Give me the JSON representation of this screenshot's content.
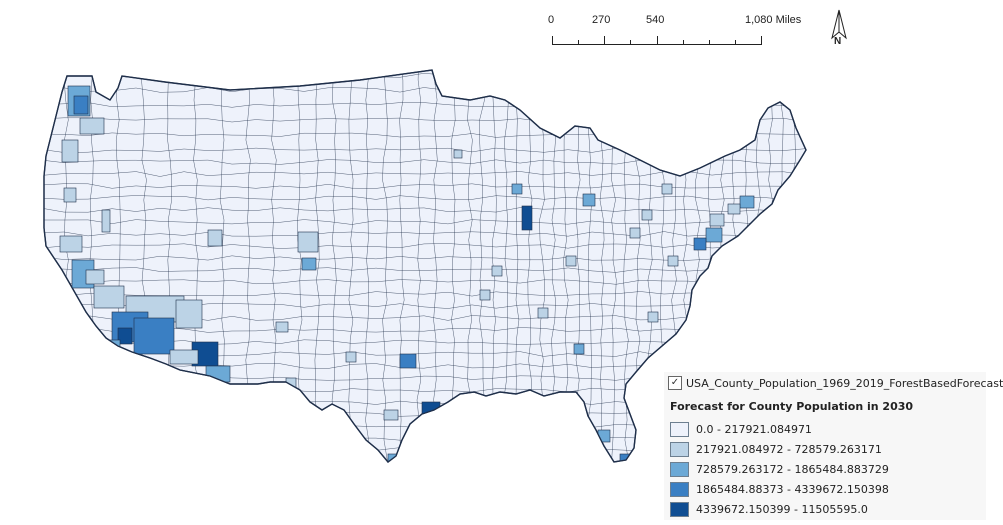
{
  "scale_bar": {
    "labels": [
      "0",
      "270",
      "540",
      "1,080 Miles"
    ]
  },
  "north_arrow": {
    "label": "N"
  },
  "legend": {
    "layer_name": "USA_County_Population_1969_2019_ForestBasedForecast",
    "layer_checked": "✓",
    "title": "Forecast for County Population in 2030",
    "classes": [
      {
        "label": "0.0 - 217921.084971",
        "color": "#eef2fb"
      },
      {
        "label": "217921.084972 - 728579.263171",
        "color": "#bcd3e6"
      },
      {
        "label": "728579.263172 - 1865484.883729",
        "color": "#6ca9d6"
      },
      {
        "label": "1865484.88373 - 4339672.150398",
        "color": "#3a7fc3"
      },
      {
        "label": "4339672.150399 - 11505595.0",
        "color": "#0f4d92"
      }
    ]
  },
  "map": {
    "outline_color": "#1f2f4a",
    "background_color": "#ffffff"
  }
}
